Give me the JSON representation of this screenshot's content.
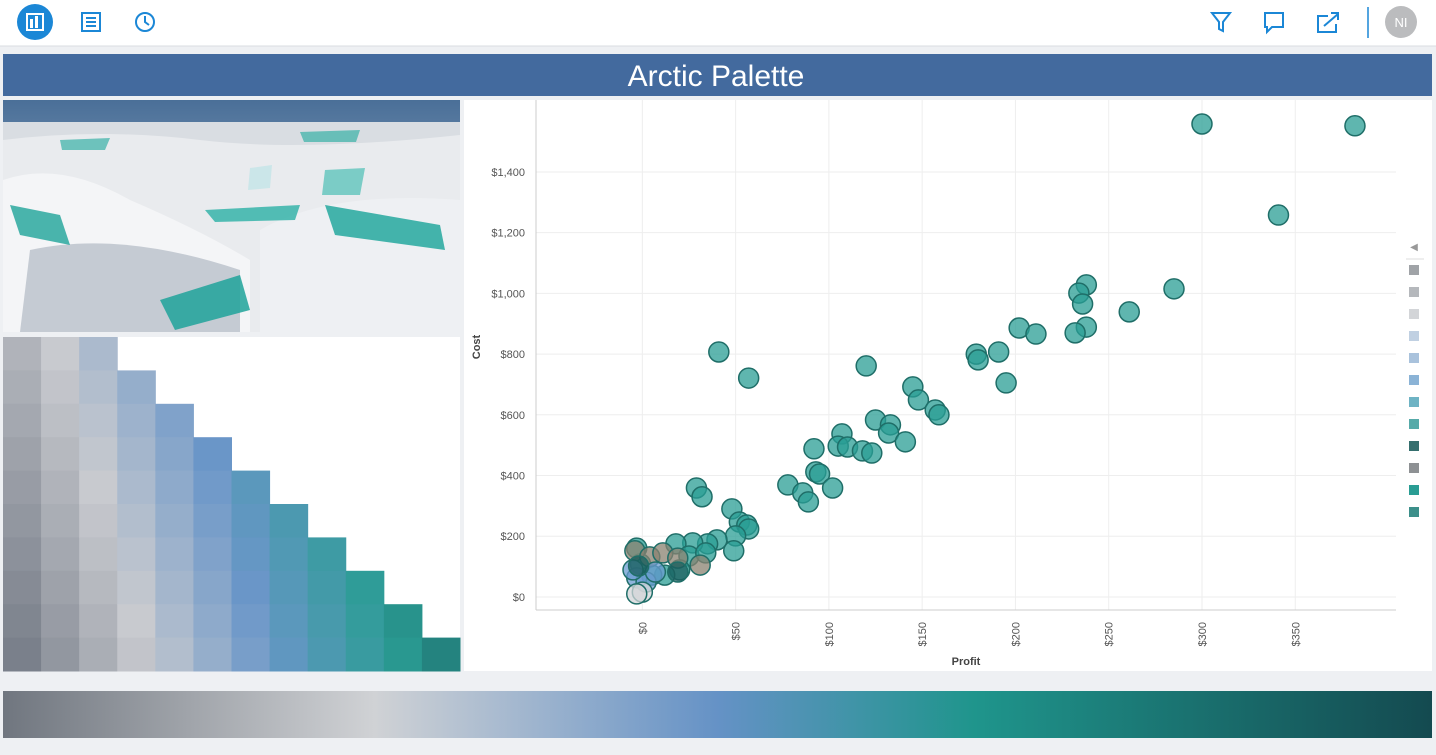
{
  "header": {
    "title": "Arctic Palette"
  },
  "toolbar": {
    "user_initials": "NI"
  },
  "chart_data": {
    "type": "scatter",
    "xlabel": "Profit",
    "ylabel": "Cost",
    "xlim": [
      -57,
      404
    ],
    "ylim": [
      -43,
      1637
    ],
    "grid": true,
    "xticks": [
      {
        "value": 0,
        "label": "$0"
      },
      {
        "value": 50,
        "label": "$50"
      },
      {
        "value": 100,
        "label": "$100"
      },
      {
        "value": 150,
        "label": "$150"
      },
      {
        "value": 200,
        "label": "$200"
      },
      {
        "value": 250,
        "label": "$250"
      },
      {
        "value": 300,
        "label": "$300"
      },
      {
        "value": 350,
        "label": "$350"
      }
    ],
    "yticks": [
      {
        "value": 0,
        "label": "$0"
      },
      {
        "value": 200,
        "label": "$200"
      },
      {
        "value": 400,
        "label": "$400"
      },
      {
        "value": 600,
        "label": "$600"
      },
      {
        "value": 800,
        "label": "$800"
      },
      {
        "value": 1000,
        "label": "$1,000"
      },
      {
        "value": 1200,
        "label": "$1,200"
      },
      {
        "value": 1400,
        "label": "$1,400"
      }
    ],
    "series": [
      {
        "color": "#2a9d94",
        "x": [
          300,
          382,
          341,
          285,
          261,
          238,
          234,
          236,
          238,
          232,
          202,
          211,
          191,
          179,
          180,
          195,
          41,
          57,
          120,
          145,
          148,
          157,
          159,
          125,
          133,
          132,
          141,
          107,
          92,
          105,
          110,
          118,
          123,
          93,
          95,
          78,
          86,
          89,
          102,
          29,
          32,
          48,
          52,
          56,
          57,
          50,
          49,
          40,
          35,
          27,
          18,
          25,
          34,
          20,
          12,
          5,
          -1,
          -3
        ],
        "y": [
          1558,
          1552,
          1258,
          1015,
          939,
          1028,
          1001,
          965,
          889,
          870,
          886,
          866,
          807,
          800,
          781,
          705,
          807,
          721,
          761,
          692,
          649,
          616,
          600,
          583,
          567,
          540,
          511,
          537,
          488,
          497,
          494,
          481,
          474,
          412,
          405,
          369,
          343,
          313,
          359,
          359,
          330,
          290,
          247,
          237,
          224,
          201,
          152,
          188,
          175,
          178,
          175,
          135,
          145,
          89,
          72,
          72,
          109,
          161
        ]
      },
      {
        "color": "#8a8170",
        "x": [
          -4,
          4,
          11,
          31,
          19
        ],
        "y": [
          152,
          132,
          145,
          105,
          128
        ]
      },
      {
        "color": "#6a9bd0",
        "x": [
          -3,
          2,
          -5,
          7
        ],
        "y": [
          63,
          49,
          89,
          82
        ]
      },
      {
        "color": "#1b5e5e",
        "x": [
          19,
          -2
        ],
        "y": [
          82,
          102
        ]
      },
      {
        "color": "#d3d5d8",
        "x": [
          0,
          -3
        ],
        "y": [
          16,
          10
        ]
      }
    ]
  }
}
